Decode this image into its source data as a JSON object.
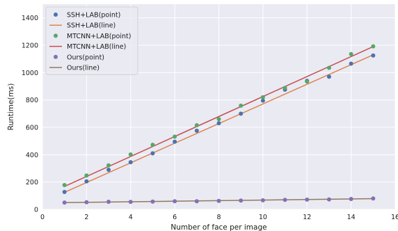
{
  "chart_data": {
    "type": "scatter",
    "xlabel": "Number of face per image",
    "ylabel": "Runtime(ms)",
    "xlim": [
      0,
      16
    ],
    "ylim": [
      0,
      1500
    ],
    "xticks": [
      0,
      2,
      4,
      6,
      8,
      10,
      12,
      14,
      16
    ],
    "yticks": [
      0,
      200,
      400,
      600,
      800,
      1000,
      1200,
      1400
    ],
    "grid": true,
    "legend_position": "top-left",
    "series": [
      {
        "name": "SSH+LAB(point)",
        "kind": "scatter",
        "color": "#4c72b0",
        "x": [
          1,
          2,
          3,
          4,
          5,
          6,
          7,
          8,
          9,
          10,
          11,
          12,
          13,
          14,
          15
        ],
        "y": [
          128,
          205,
          290,
          345,
          410,
          495,
          575,
          630,
          700,
          795,
          875,
          940,
          970,
          1065,
          1125
        ]
      },
      {
        "name": "SSH+LAB(line)",
        "kind": "line",
        "color": "#dd8452",
        "x": [
          1,
          15
        ],
        "y": [
          125,
          1130
        ]
      },
      {
        "name": "MTCNN+LAB(point)",
        "kind": "scatter",
        "color": "#55a868",
        "x": [
          1,
          2,
          3,
          4,
          5,
          6,
          7,
          8,
          9,
          10,
          11,
          12,
          13,
          14,
          15
        ],
        "y": [
          178,
          248,
          322,
          402,
          472,
          532,
          615,
          660,
          758,
          820,
          888,
          935,
          1035,
          1135,
          1192
        ]
      },
      {
        "name": "MTCNN+LAB(line)",
        "kind": "line",
        "color": "#c44e52",
        "x": [
          1,
          15
        ],
        "y": [
          168,
          1190
        ]
      },
      {
        "name": "Ours(point)",
        "kind": "scatter",
        "color": "#8172b3",
        "x": [
          1,
          2,
          3,
          4,
          5,
          6,
          7,
          8,
          9,
          10,
          11,
          12,
          13,
          14,
          15
        ],
        "y": [
          50,
          53,
          56,
          55,
          57,
          60,
          60,
          62,
          65,
          67,
          70,
          72,
          73,
          76,
          80
        ]
      },
      {
        "name": "Ours(line)",
        "kind": "line",
        "color": "#937860",
        "x": [
          1,
          15
        ],
        "y": [
          50,
          79
        ]
      }
    ]
  }
}
